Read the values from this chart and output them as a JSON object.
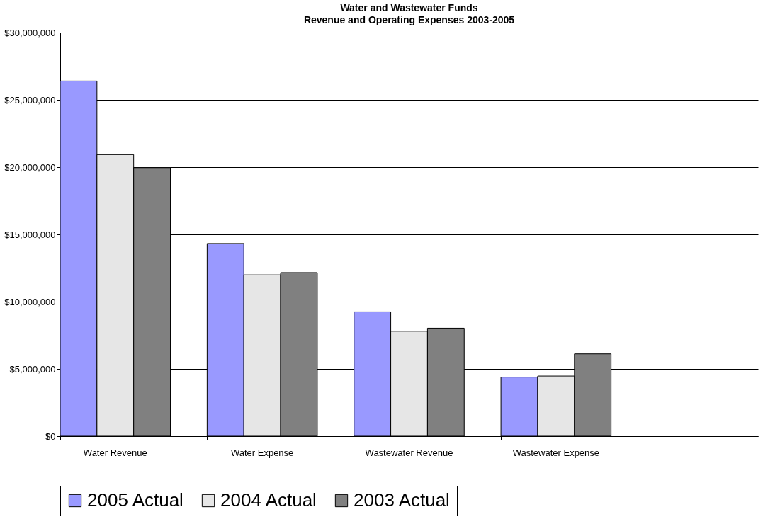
{
  "chart_data": {
    "type": "bar",
    "title": "Water and Wastewater Funds",
    "subtitle": "Revenue and Operating Expenses 2003-2005",
    "categories": [
      "Water Revenue",
      "Water Expense",
      "Wastewater Revenue",
      "Wastewater Expense",
      null
    ],
    "series": [
      {
        "name": "2005 Actual",
        "color": "#9999ff",
        "values": [
          26400000,
          14320000,
          9240000,
          4390000,
          null
        ]
      },
      {
        "name": "2004 Actual",
        "color": "#e6e6e6",
        "values": [
          20930000,
          11990000,
          7800000,
          4470000,
          null
        ]
      },
      {
        "name": "2003 Actual",
        "color": "#808080",
        "values": [
          19960000,
          12160000,
          8030000,
          6120000,
          null
        ]
      }
    ],
    "ylim": [
      0,
      30000000
    ],
    "yticks": [
      {
        "value": 0,
        "label": "$0"
      },
      {
        "value": 5000000,
        "label": "$5,000,000"
      },
      {
        "value": 10000000,
        "label": "$10,000,000"
      },
      {
        "value": 15000000,
        "label": "$15,000,000"
      },
      {
        "value": 20000000,
        "label": "$20,000,000"
      },
      {
        "value": 25000000,
        "label": "$25,000,000"
      },
      {
        "value": 30000000,
        "label": "$30,000,000"
      }
    ],
    "grid": "y",
    "legend": "bottom"
  }
}
